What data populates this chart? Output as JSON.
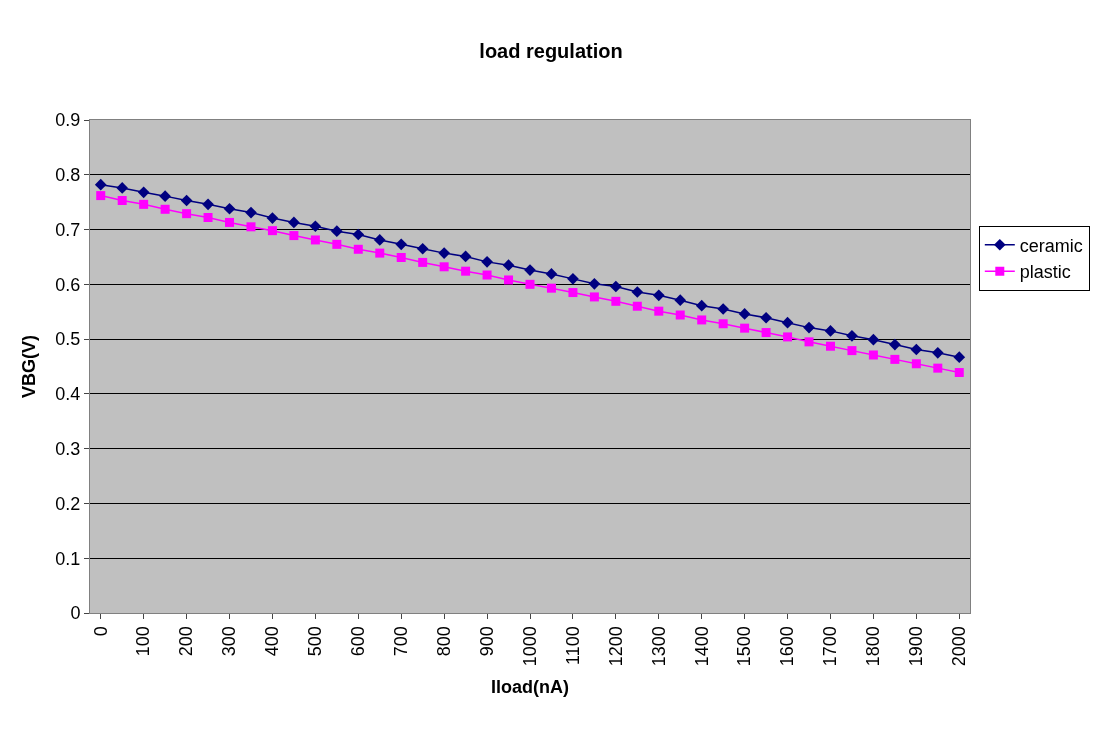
{
  "chart_data": {
    "type": "line",
    "title": "load regulation",
    "xlabel": "Iload(nA)",
    "ylabel": "VBG(V)",
    "categories": [
      "0",
      null,
      "100",
      null,
      "200",
      null,
      "300",
      null,
      "400",
      null,
      "500",
      null,
      "600",
      null,
      "700",
      null,
      "800",
      null,
      "900",
      null,
      "1000",
      null,
      "1100",
      null,
      "1200",
      null,
      "1300",
      null,
      "1400",
      null,
      "1500",
      null,
      "1600",
      null,
      "1700",
      null,
      "1800",
      null,
      "1900",
      null,
      "2000"
    ],
    "series": [
      {
        "name": "ceramic",
        "color": "#000080",
        "marker": "diamond",
        "values": [
          0.782,
          0.776,
          0.768,
          0.761,
          0.753,
          0.746,
          0.738,
          0.731,
          0.721,
          0.713,
          0.706,
          0.697,
          0.691,
          0.681,
          0.673,
          0.665,
          0.657,
          0.651,
          0.641,
          0.635,
          0.626,
          0.619,
          0.61,
          0.601,
          0.596,
          0.586,
          0.58,
          0.571,
          0.561,
          0.555,
          0.546,
          0.539,
          0.53,
          0.521,
          0.515,
          0.506,
          0.499,
          0.49,
          0.481,
          0.475,
          0.467
        ]
      },
      {
        "name": "plastic",
        "color": "#ff00ff",
        "marker": "square",
        "values": [
          0.762,
          0.753,
          0.746,
          0.737,
          0.729,
          0.722,
          0.713,
          0.705,
          0.698,
          0.689,
          0.681,
          0.673,
          0.664,
          0.657,
          0.649,
          0.64,
          0.632,
          0.624,
          0.617,
          0.608,
          0.6,
          0.593,
          0.585,
          0.577,
          0.569,
          0.56,
          0.551,
          0.544,
          0.535,
          0.528,
          0.52,
          0.512,
          0.504,
          0.495,
          0.487,
          0.479,
          0.471,
          0.463,
          0.455,
          0.447,
          0.439
        ]
      }
    ],
    "ylim": [
      0,
      0.9
    ],
    "yticks": [
      0,
      0.1,
      0.2,
      0.3,
      0.4,
      0.5,
      0.6,
      0.7,
      0.8,
      0.9
    ],
    "grid": "y",
    "legend": "right"
  }
}
